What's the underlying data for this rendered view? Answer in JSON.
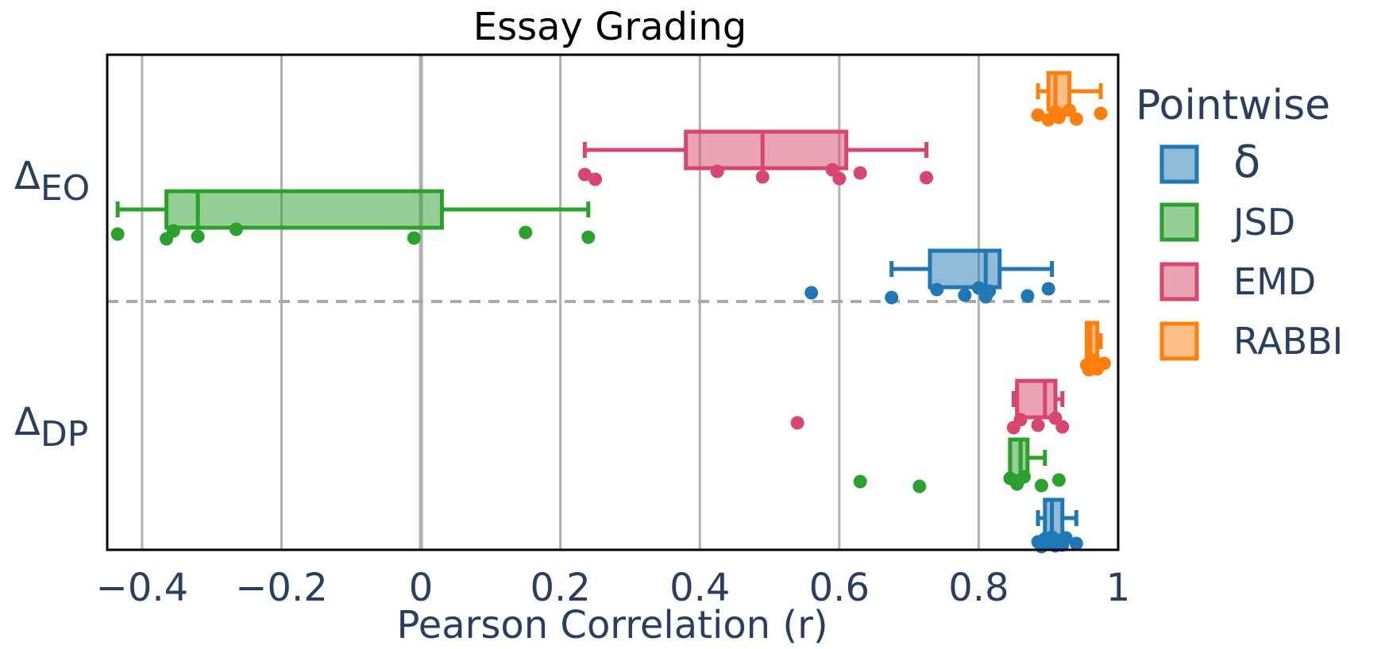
{
  "chart_data": {
    "type": "box",
    "title": "Essay Grading",
    "xlabel": "Pearson Correlation (r)",
    "ylabel": "",
    "xlim": [
      -0.45,
      1.0
    ],
    "x_ticks": [
      -0.4,
      -0.2,
      0,
      0.2,
      0.4,
      0.6,
      0.8,
      1
    ],
    "x_tick_labels": [
      "−0.4",
      "−0.2",
      "0",
      "0.2",
      "0.4",
      "0.6",
      "0.8",
      "1"
    ],
    "grid": "vertical",
    "categories": [
      {
        "label_main": "Δ",
        "label_sub": "EO"
      },
      {
        "label_main": "Δ",
        "label_sub": "DP"
      }
    ],
    "legend": {
      "title": "Pointwise",
      "position": "right"
    },
    "series": [
      {
        "name": "δ",
        "color": "#1f77b4",
        "boxes": [
          {
            "category": "EO",
            "whisker_low": 0.675,
            "q1": 0.73,
            "median": 0.81,
            "q3": 0.83,
            "whisker_high": 0.905,
            "points": [
              0.56,
              0.675,
              0.74,
              0.78,
              0.8,
              0.81,
              0.815,
              0.87,
              0.9
            ]
          },
          {
            "category": "DP",
            "whisker_low": 0.885,
            "q1": 0.895,
            "median": 0.905,
            "q3": 0.92,
            "whisker_high": 0.94,
            "points": [
              0.885,
              0.89,
              0.895,
              0.9,
              0.905,
              0.91,
              0.915,
              0.92,
              0.925,
              0.94
            ]
          }
        ]
      },
      {
        "name": "JSD",
        "color": "#2ca02c",
        "boxes": [
          {
            "category": "EO",
            "whisker_low": -0.435,
            "q1": -0.365,
            "median": -0.32,
            "q3": 0.03,
            "whisker_high": 0.24,
            "points": [
              -0.435,
              -0.365,
              -0.355,
              -0.32,
              -0.265,
              -0.01,
              0.15,
              0.24
            ]
          },
          {
            "category": "DP",
            "whisker_low": 0.845,
            "q1": 0.845,
            "median": 0.86,
            "q3": 0.87,
            "whisker_high": 0.895,
            "points": [
              0.63,
              0.715,
              0.845,
              0.855,
              0.865,
              0.89,
              0.915
            ]
          }
        ]
      },
      {
        "name": "EMD",
        "color": "#d6466e",
        "boxes": [
          {
            "category": "EO",
            "whisker_low": 0.235,
            "q1": 0.38,
            "median": 0.49,
            "q3": 0.61,
            "whisker_high": 0.725,
            "points": [
              0.235,
              0.25,
              0.425,
              0.49,
              0.59,
              0.6,
              0.63,
              0.725
            ]
          },
          {
            "category": "DP",
            "whisker_low": 0.85,
            "q1": 0.855,
            "median": 0.895,
            "q3": 0.91,
            "whisker_high": 0.92,
            "points": [
              0.54,
              0.85,
              0.86,
              0.885,
              0.91,
              0.92
            ]
          }
        ]
      },
      {
        "name": "RABBI",
        "color": "#ff7f0e",
        "boxes": [
          {
            "category": "EO",
            "whisker_low": 0.885,
            "q1": 0.9,
            "median": 0.91,
            "q3": 0.93,
            "whisker_high": 0.975,
            "points": [
              0.885,
              0.9,
              0.91,
              0.915,
              0.93,
              0.94,
              0.975
            ]
          },
          {
            "category": "DP",
            "whisker_low": 0.955,
            "q1": 0.955,
            "median": 0.96,
            "q3": 0.97,
            "whisker_high": 0.975,
            "points": [
              0.955,
              0.958,
              0.96,
              0.963,
              0.965,
              0.97,
              0.98
            ]
          }
        ]
      }
    ]
  }
}
